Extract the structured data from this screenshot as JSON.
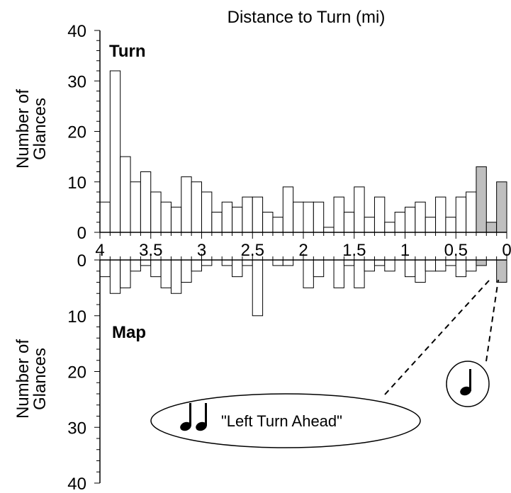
{
  "chart_data": {
    "type": "bar",
    "title": "Distance to Turn (mi)",
    "x": {
      "range": [
        4,
        0
      ],
      "ticks": [
        4,
        3.5,
        3,
        2.5,
        2,
        1.5,
        1,
        0.5,
        0
      ],
      "tick_labels": [
        "4",
        "3.5",
        "3",
        "2.5",
        "2",
        "1.5",
        "1",
        "0.5",
        "0"
      ],
      "bin_width_mi": 0.1
    },
    "panels": [
      {
        "label": "Turn",
        "ylabel_line1": "Number of",
        "ylabel_line2": "Glances",
        "ylim": [
          0,
          40
        ],
        "yticks": [
          0,
          10,
          20,
          30,
          40
        ],
        "ytick_labels": [
          "0",
          "10",
          "20",
          "30",
          "40"
        ],
        "values": [
          6,
          32,
          15,
          10,
          12,
          8,
          6,
          5,
          11,
          10,
          8,
          4,
          6,
          5,
          7,
          7,
          4,
          3,
          9,
          6,
          6,
          6,
          1,
          7,
          4,
          9,
          3,
          7,
          2,
          4,
          5,
          6,
          3,
          7,
          3,
          7,
          8,
          13,
          2,
          10
        ],
        "highlight_bins": [
          37,
          38,
          39
        ]
      },
      {
        "label": "Map",
        "ylabel_line1": "Number of",
        "ylabel_line2": "Glances",
        "ylim": [
          0,
          40
        ],
        "yticks": [
          0,
          10,
          20,
          30,
          40
        ],
        "ytick_labels": [
          "0",
          "10",
          "20",
          "30",
          "40"
        ],
        "values": [
          3,
          6,
          5,
          2,
          1,
          3,
          5,
          6,
          4,
          2,
          1,
          0,
          1,
          3,
          1,
          10,
          0,
          1,
          1,
          0,
          5,
          3,
          0,
          5,
          1,
          5,
          2,
          1,
          2,
          0,
          3,
          4,
          2,
          2,
          1,
          3,
          2,
          1,
          0,
          4
        ],
        "highlight_bins": [
          37,
          38,
          39
        ]
      }
    ],
    "callouts": [
      {
        "text": "\"Left Turn Ahead\"",
        "icon": "double-music-note-icon"
      },
      {
        "text": "",
        "icon": "single-music-note-icon"
      }
    ],
    "colors": {
      "bar": "#ffffff",
      "highlight": "#bfbfbf",
      "stroke": "#000000"
    }
  }
}
